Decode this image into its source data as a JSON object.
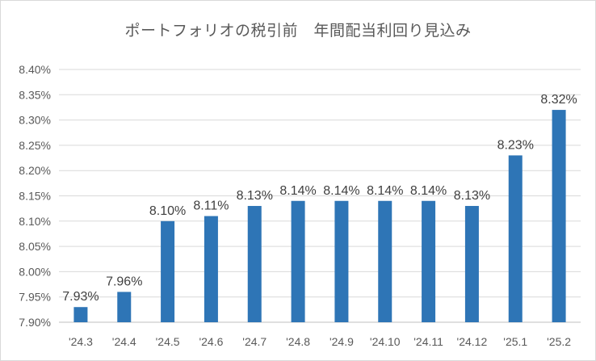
{
  "chart_data": {
    "type": "bar",
    "title": "ポートフォリオの税引前　年間配当利回り見込み",
    "categories": [
      "'24.3",
      "'24.4",
      "'24.5",
      "'24.6",
      "'24.7",
      "'24.8",
      "'24.9",
      "'24.10",
      "'24.11",
      "'24.12",
      "'25.1",
      "'25.2"
    ],
    "values": [
      7.93,
      7.96,
      8.1,
      8.11,
      8.13,
      8.14,
      8.14,
      8.14,
      8.14,
      8.13,
      8.23,
      8.32
    ],
    "data_labels": [
      "7.93%",
      "7.96%",
      "8.10%",
      "8.11%",
      "8.13%",
      "8.14%",
      "8.14%",
      "8.14%",
      "8.14%",
      "8.13%",
      "8.23%",
      "8.32%"
    ],
    "ylim": [
      7.9,
      8.4
    ],
    "yticks": [
      "7.90%",
      "7.95%",
      "8.00%",
      "8.05%",
      "8.10%",
      "8.15%",
      "8.20%",
      "8.25%",
      "8.30%",
      "8.35%",
      "8.40%"
    ],
    "xlabel": "",
    "ylabel": "",
    "grid": true,
    "colors": {
      "bar": "#2e75b6",
      "grid": "#d9d9d9",
      "axis": "#bfbfbf"
    }
  }
}
